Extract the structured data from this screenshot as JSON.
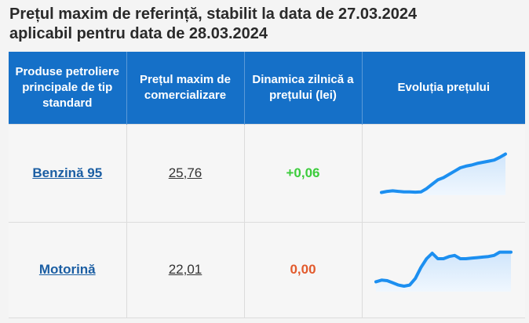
{
  "page": {
    "title_line1": "Prețul maxim de referință, stabilit la data de 27.03.2024",
    "title_line2": "aplicabil pentru data de 28.03.2024"
  },
  "table": {
    "headers": {
      "product": "Produse petroliere principale de tip standard",
      "max_price": "Prețul maxim de comercializare",
      "daily_change": "Dinamica zilnică a prețului (lei)",
      "evolution": "Evoluția prețului"
    },
    "rows": [
      {
        "product": "Benzină 95",
        "price": "25,76",
        "change": "+0,06",
        "change_color": "#3bcc3b",
        "trend": [
          0.25,
          0.35,
          0.4,
          0.35,
          0.3,
          0.3,
          0.28,
          0.3,
          0.6,
          1.0,
          1.4,
          1.6,
          1.9,
          2.2,
          2.5,
          2.65,
          2.75,
          2.9,
          3.0,
          3.1,
          3.2,
          3.45,
          3.75
        ]
      },
      {
        "product": "Motorină",
        "price": "22,01",
        "change": "0,00",
        "change_color": "#e25a2c",
        "trend": [
          0.9,
          1.05,
          1.0,
          0.8,
          0.6,
          0.5,
          0.6,
          1.2,
          2.2,
          3.0,
          3.5,
          3.0,
          3.0,
          3.2,
          3.3,
          3.0,
          3.0,
          3.05,
          3.1,
          3.15,
          3.2,
          3.3,
          3.6,
          3.6,
          3.6
        ]
      }
    ]
  },
  "colors": {
    "header_bg": "#1570c8",
    "spark_line": "#1c8ff0",
    "spark_fill": "#cfe5fb"
  }
}
